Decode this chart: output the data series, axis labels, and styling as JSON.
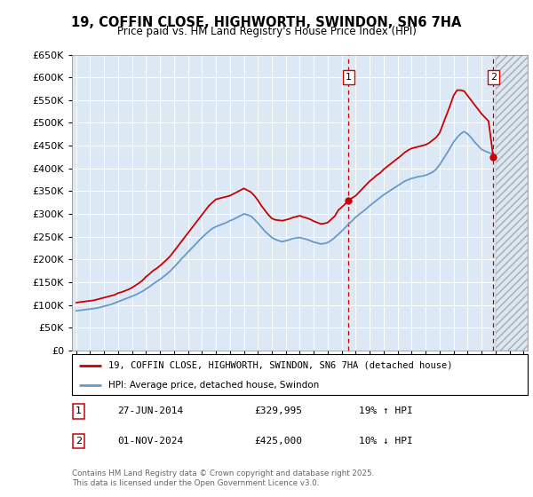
{
  "title": "19, COFFIN CLOSE, HIGHWORTH, SWINDON, SN6 7HA",
  "subtitle": "Price paid vs. HM Land Registry's House Price Index (HPI)",
  "legend_line1": "19, COFFIN CLOSE, HIGHWORTH, SWINDON, SN6 7HA (detached house)",
  "legend_line2": "HPI: Average price, detached house, Swindon",
  "annotation1_num": "1",
  "annotation1_date": "27-JUN-2014",
  "annotation1_price": "£329,995",
  "annotation1_hpi": "19% ↑ HPI",
  "annotation2_num": "2",
  "annotation2_date": "01-NOV-2024",
  "annotation2_price": "£425,000",
  "annotation2_hpi": "10% ↓ HPI",
  "copyright": "Contains HM Land Registry data © Crown copyright and database right 2025.\nThis data is licensed under the Open Government Licence v3.0.",
  "ylim": [
    0,
    650000
  ],
  "yticks": [
    0,
    50000,
    100000,
    150000,
    200000,
    250000,
    300000,
    350000,
    400000,
    450000,
    500000,
    550000,
    600000,
    650000
  ],
  "xlim_start": 1994.7,
  "xlim_end": 2027.3,
  "marker1_x": 2014.49,
  "marker2_x": 2024.84,
  "marker1_y": 329995,
  "marker2_y": 425000,
  "bg_color": "#dce9f5",
  "line_red": "#cc0000",
  "line_blue": "#6699cc",
  "hatch_start": 2025.0,
  "red_x": [
    1995.0,
    1995.25,
    1995.5,
    1995.75,
    1996.0,
    1996.25,
    1996.5,
    1996.75,
    1997.0,
    1997.25,
    1997.5,
    1997.75,
    1998.0,
    1998.25,
    1998.5,
    1998.75,
    1999.0,
    1999.25,
    1999.5,
    1999.75,
    2000.0,
    2000.25,
    2000.5,
    2000.75,
    2001.0,
    2001.25,
    2001.5,
    2001.75,
    2002.0,
    2002.25,
    2002.5,
    2002.75,
    2003.0,
    2003.25,
    2003.5,
    2003.75,
    2004.0,
    2004.25,
    2004.5,
    2004.75,
    2005.0,
    2005.25,
    2005.5,
    2005.75,
    2006.0,
    2006.25,
    2006.5,
    2006.75,
    2007.0,
    2007.25,
    2007.5,
    2007.75,
    2008.0,
    2008.25,
    2008.5,
    2008.75,
    2009.0,
    2009.25,
    2009.5,
    2009.75,
    2010.0,
    2010.25,
    2010.5,
    2010.75,
    2011.0,
    2011.25,
    2011.5,
    2011.75,
    2012.0,
    2012.25,
    2012.5,
    2012.75,
    2013.0,
    2013.25,
    2013.5,
    2013.75,
    2014.0,
    2014.25,
    2014.49,
    2015.0,
    2015.25,
    2015.5,
    2015.75,
    2016.0,
    2016.25,
    2016.5,
    2016.75,
    2017.0,
    2017.25,
    2017.5,
    2017.75,
    2018.0,
    2018.25,
    2018.5,
    2018.75,
    2019.0,
    2019.25,
    2019.5,
    2019.75,
    2020.0,
    2020.25,
    2020.5,
    2020.75,
    2021.0,
    2021.25,
    2021.5,
    2021.75,
    2022.0,
    2022.25,
    2022.5,
    2022.75,
    2023.0,
    2023.25,
    2023.5,
    2023.75,
    2024.0,
    2024.25,
    2024.5,
    2024.84
  ],
  "red_y": [
    105000,
    106000,
    107000,
    108000,
    109000,
    110000,
    112000,
    114000,
    116000,
    118000,
    120000,
    122000,
    126000,
    128000,
    131000,
    134000,
    138000,
    143000,
    148000,
    154000,
    162000,
    168000,
    175000,
    180000,
    186000,
    193000,
    200000,
    208000,
    218000,
    228000,
    238000,
    248000,
    258000,
    268000,
    278000,
    288000,
    298000,
    308000,
    318000,
    325000,
    332000,
    334000,
    336000,
    338000,
    340000,
    344000,
    348000,
    352000,
    356000,
    352000,
    348000,
    340000,
    330000,
    318000,
    308000,
    298000,
    290000,
    287000,
    286000,
    285000,
    287000,
    289000,
    292000,
    294000,
    296000,
    293000,
    291000,
    288000,
    284000,
    281000,
    278000,
    279000,
    281000,
    288000,
    295000,
    308000,
    315000,
    322000,
    329995,
    340000,
    348000,
    356000,
    364000,
    372000,
    378000,
    385000,
    390000,
    398000,
    404000,
    410000,
    416000,
    422000,
    428000,
    435000,
    440000,
    444000,
    446000,
    448000,
    450000,
    452000,
    456000,
    462000,
    468000,
    478000,
    498000,
    518000,
    538000,
    560000,
    572000,
    572000,
    570000,
    560000,
    550000,
    540000,
    530000,
    520000,
    512000,
    504000,
    425000
  ],
  "blue_x": [
    1995.0,
    1995.25,
    1995.5,
    1995.75,
    1996.0,
    1996.25,
    1996.5,
    1996.75,
    1997.0,
    1997.25,
    1997.5,
    1997.75,
    1998.0,
    1998.25,
    1998.5,
    1998.75,
    1999.0,
    1999.25,
    1999.5,
    1999.75,
    2000.0,
    2000.25,
    2000.5,
    2000.75,
    2001.0,
    2001.25,
    2001.5,
    2001.75,
    2002.0,
    2002.25,
    2002.5,
    2002.75,
    2003.0,
    2003.25,
    2003.5,
    2003.75,
    2004.0,
    2004.25,
    2004.5,
    2004.75,
    2005.0,
    2005.25,
    2005.5,
    2005.75,
    2006.0,
    2006.25,
    2006.5,
    2006.75,
    2007.0,
    2007.25,
    2007.5,
    2007.75,
    2008.0,
    2008.25,
    2008.5,
    2008.75,
    2009.0,
    2009.25,
    2009.5,
    2009.75,
    2010.0,
    2010.25,
    2010.5,
    2010.75,
    2011.0,
    2011.25,
    2011.5,
    2011.75,
    2012.0,
    2012.25,
    2012.5,
    2012.75,
    2013.0,
    2013.25,
    2013.5,
    2013.75,
    2014.0,
    2014.25,
    2014.5,
    2014.75,
    2015.0,
    2015.25,
    2015.5,
    2015.75,
    2016.0,
    2016.25,
    2016.5,
    2016.75,
    2017.0,
    2017.25,
    2017.5,
    2017.75,
    2018.0,
    2018.25,
    2018.5,
    2018.75,
    2019.0,
    2019.25,
    2019.5,
    2019.75,
    2020.0,
    2020.25,
    2020.5,
    2020.75,
    2021.0,
    2021.25,
    2021.5,
    2021.75,
    2022.0,
    2022.25,
    2022.5,
    2022.75,
    2023.0,
    2023.25,
    2023.5,
    2023.75,
    2024.0,
    2024.25,
    2024.5,
    2024.75,
    2025.0
  ],
  "blue_y": [
    87000,
    88000,
    89000,
    90000,
    91000,
    92000,
    93000,
    95000,
    97000,
    99000,
    101000,
    104000,
    107000,
    110000,
    113000,
    116000,
    119000,
    122000,
    126000,
    130000,
    135000,
    140000,
    146000,
    151000,
    156000,
    162000,
    168000,
    175000,
    183000,
    191000,
    200000,
    208000,
    216000,
    224000,
    232000,
    240000,
    248000,
    255000,
    262000,
    268000,
    272000,
    275000,
    278000,
    281000,
    285000,
    288000,
    292000,
    296000,
    300000,
    298000,
    295000,
    288000,
    280000,
    271000,
    262000,
    255000,
    248000,
    244000,
    241000,
    239000,
    241000,
    243000,
    246000,
    247000,
    248000,
    246000,
    244000,
    241000,
    238000,
    236000,
    234000,
    235000,
    237000,
    242000,
    248000,
    255000,
    262000,
    270000,
    278000,
    285000,
    293000,
    299000,
    305000,
    311000,
    318000,
    324000,
    330000,
    336000,
    342000,
    347000,
    352000,
    357000,
    362000,
    367000,
    372000,
    375000,
    378000,
    380000,
    382000,
    383000,
    385000,
    388000,
    392000,
    398000,
    408000,
    420000,
    432000,
    445000,
    458000,
    468000,
    476000,
    481000,
    476000,
    468000,
    458000,
    450000,
    442000,
    438000,
    435000,
    432000,
    430000
  ]
}
